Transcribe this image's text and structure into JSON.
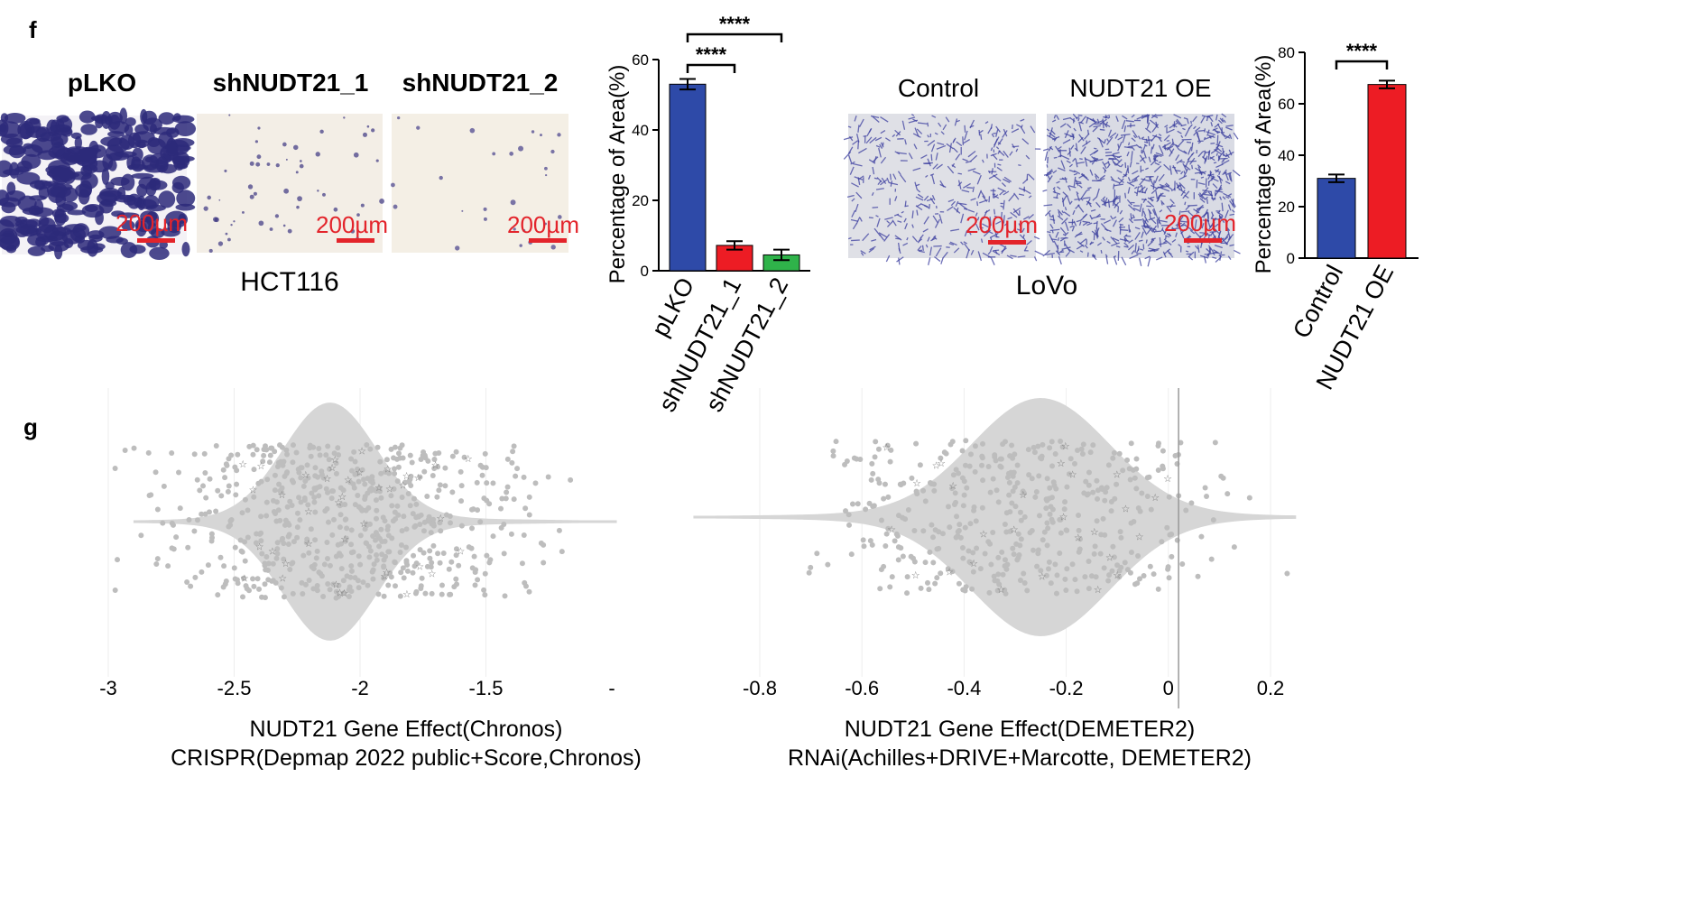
{
  "panel_f": {
    "letter": "f",
    "hct116": {
      "cell_line": "HCT116",
      "images": [
        {
          "label": "pLKO",
          "scale": "200µm",
          "density": 0.62
        },
        {
          "label": "shNUDT21_1",
          "scale": "200µm",
          "density": 0.06
        },
        {
          "label": "shNUDT21_2",
          "scale": "200µm",
          "density": 0.03
        }
      ]
    },
    "lovo": {
      "cell_line": "LoVo",
      "images": [
        {
          "label": "Control",
          "scale": "200µm",
          "density": 0.28
        },
        {
          "label": "NUDT21 OE",
          "scale": "200µm",
          "density": 0.62
        }
      ]
    }
  },
  "panel_g": {
    "letter": "g",
    "crispr": {
      "xlabel_line1": "NUDT21 Gene Effect(Chronos)",
      "xlabel_line2": "CRISPR(Depmap 2022 public+Score,Chronos)",
      "ticks": [
        "-3",
        "-2.5",
        "-2",
        "-1.5",
        "-"
      ]
    },
    "rnai": {
      "xlabel_line1": "NUDT21 Gene Effect(DEMETER2)",
      "xlabel_line2": "RNAi(Achilles+DRIVE+Marcotte, DEMETER2)",
      "ticks": [
        "-0.8",
        "-0.6",
        "-0.4",
        "-0.2",
        "0",
        "0.2"
      ]
    }
  },
  "colors": {
    "blue": "#2e4aa8",
    "red": "#ed1c24",
    "green": "#2fb34a",
    "violin": "#d6d6d6",
    "dot": "#bdbdbd",
    "scale": "#e3242b"
  },
  "chart_data": [
    {
      "type": "bar",
      "title": "",
      "categories": [
        "pLKO",
        "shNUDT21_1",
        "shNUDT21_2"
      ],
      "values": [
        53,
        7.2,
        4.5
      ],
      "errors": [
        1.5,
        1.2,
        1.5
      ],
      "colors": [
        "#2e4aa8",
        "#ed1c24",
        "#2fb34a"
      ],
      "ylabel": "Percentage of Area(%)",
      "ylim": [
        0,
        60
      ],
      "yticks": [
        "0",
        "20",
        "40",
        "60"
      ],
      "significance": [
        {
          "from": 0,
          "to": 1,
          "label": "****"
        },
        {
          "from": 0,
          "to": 2,
          "label": "****"
        }
      ]
    },
    {
      "type": "bar",
      "title": "",
      "categories": [
        "Control",
        "NUDT21 OE"
      ],
      "values": [
        31,
        67.5
      ],
      "errors": [
        1.5,
        1.5
      ],
      "colors": [
        "#2e4aa8",
        "#ed1c24"
      ],
      "ylabel": "Percentage of Area(%)",
      "ylim": [
        0,
        80
      ],
      "yticks": [
        "0",
        "20",
        "40",
        "60",
        "80"
      ],
      "significance": [
        {
          "from": 0,
          "to": 1,
          "label": "****"
        }
      ]
    }
  ]
}
